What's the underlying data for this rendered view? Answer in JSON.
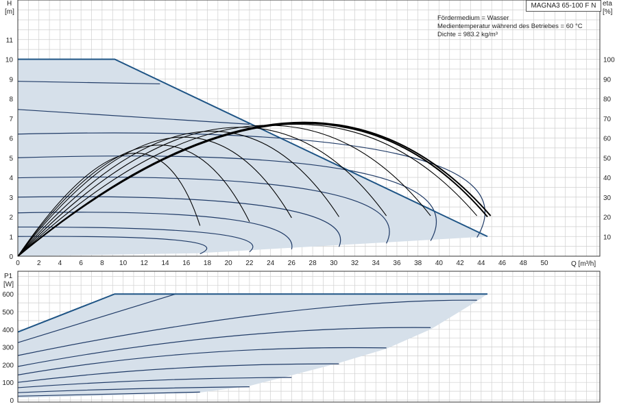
{
  "header": {
    "pump_model": "MAGNA3 65-100 F N",
    "notes": [
      "Fördermedium = Wasser",
      "Medientemperatur während des Betriebes = 60 °C",
      "Dichte = 983.2 kg/m³"
    ]
  },
  "chart_data": [
    {
      "type": "line",
      "panel": "head",
      "ylabel_lines": [
        "H",
        "[m]"
      ],
      "y2label_lines": [
        "eta",
        "[%]"
      ],
      "xlabel": "Q [m³/h]",
      "xlim": [
        0,
        55
      ],
      "ylim": [
        0,
        12
      ],
      "y2lim": [
        0,
        120
      ],
      "xticks": [
        0,
        2,
        4,
        6,
        8,
        10,
        12,
        14,
        16,
        18,
        20,
        22,
        24,
        26,
        28,
        30,
        32,
        34,
        36,
        38,
        40,
        42,
        44,
        46,
        48,
        50
      ],
      "yticks": [
        0,
        1,
        2,
        3,
        4,
        5,
        6,
        7,
        8,
        9,
        10,
        11
      ],
      "y2ticks": [
        10,
        20,
        30,
        40,
        50,
        60,
        70,
        80,
        90,
        100
      ],
      "grid": true,
      "operating_envelope": {
        "shaded": true,
        "upper_boundary": [
          [
            0,
            10
          ],
          [
            9.2,
            10
          ],
          [
            44.6,
            1.0
          ]
        ],
        "lower_boundary": [
          [
            0,
            0
          ],
          [
            17,
            0.15
          ],
          [
            44.6,
            1.0
          ]
        ]
      },
      "series": [
        {
          "curve": "head",
          "points": [
            [
              0,
              1.0
            ],
            [
              15,
              0.82
            ],
            [
              17.3,
              0.12
            ]
          ]
        },
        {
          "curve": "head",
          "points": [
            [
              0,
              1.48
            ],
            [
              18,
              1.18
            ],
            [
              22,
              0.22
            ]
          ]
        },
        {
          "curve": "head",
          "points": [
            [
              0,
              2.2
            ],
            [
              20,
              1.88
            ],
            [
              26,
              0.35
            ]
          ]
        },
        {
          "curve": "head",
          "points": [
            [
              0,
              3.0
            ],
            [
              24,
              2.5
            ],
            [
              30.5,
              0.48
            ]
          ]
        },
        {
          "curve": "head",
          "points": [
            [
              0,
              3.98
            ],
            [
              28,
              3.35
            ],
            [
              35,
              0.65
            ]
          ]
        },
        {
          "curve": "head",
          "points": [
            [
              0,
              5.0
            ],
            [
              32,
              4.3
            ],
            [
              39.2,
              0.78
            ]
          ]
        },
        {
          "curve": "head",
          "points": [
            [
              0,
              6.2
            ],
            [
              36,
              5.2
            ],
            [
              43.6,
              0.95
            ]
          ]
        },
        {
          "curve": "head",
          "points": [
            [
              0,
              7.45
            ],
            [
              22,
              6.7
            ]
          ]
        },
        {
          "curve": "head",
          "points": [
            [
              0,
              8.88
            ],
            [
              13.5,
              8.75
            ]
          ]
        },
        {
          "curve": "efficiency",
          "points": [
            [
              0,
              0
            ],
            [
              10.5,
              52
            ],
            [
              17.3,
              15.5
            ]
          ]
        },
        {
          "curve": "efficiency",
          "points": [
            [
              0,
              0
            ],
            [
              12.5,
              56
            ],
            [
              22,
              17.5
            ]
          ]
        },
        {
          "curve": "efficiency",
          "points": [
            [
              0,
              0
            ],
            [
              14.5,
              60
            ],
            [
              26,
              19.5
            ]
          ]
        },
        {
          "curve": "efficiency",
          "points": [
            [
              0,
              0
            ],
            [
              17,
              63
            ],
            [
              30.5,
              20
            ]
          ]
        },
        {
          "curve": "efficiency",
          "points": [
            [
              0,
              0
            ],
            [
              19.5,
              65
            ],
            [
              35,
              20.5
            ]
          ]
        },
        {
          "curve": "efficiency",
          "points": [
            [
              0,
              0
            ],
            [
              22,
              66
            ],
            [
              39.2,
              20.5
            ]
          ]
        },
        {
          "curve": "efficiency",
          "points": [
            [
              0,
              0
            ],
            [
              24.5,
              66.5
            ],
            [
              43.6,
              20.5
            ]
          ]
        },
        {
          "curve": "efficiency",
          "points": [
            [
              0,
              0
            ],
            [
              25.2,
              67
            ],
            [
              44.6,
              20
            ]
          ]
        },
        {
          "curve": "efficiency",
          "points": [
            [
              0,
              0
            ],
            [
              25.2,
              67.5
            ],
            [
              44.9,
              20.5
            ]
          ]
        }
      ]
    },
    {
      "type": "line",
      "panel": "power",
      "ylabel_lines": [
        "P1",
        "[W]"
      ],
      "xlim": [
        0,
        55
      ],
      "ylim": [
        0,
        650
      ],
      "yticks": [
        0,
        100,
        200,
        300,
        400,
        500,
        600
      ],
      "grid": true,
      "operating_envelope": {
        "shaded": true,
        "upper_boundary": [
          [
            0,
            385
          ],
          [
            9.2,
            600
          ],
          [
            44.6,
            600
          ]
        ],
        "lower_boundary": [
          [
            0,
            12
          ],
          [
            17,
            40
          ],
          [
            22,
            80
          ],
          [
            26,
            140
          ],
          [
            30.5,
            210
          ],
          [
            35,
            290
          ],
          [
            39.2,
            400
          ],
          [
            43.6,
            560
          ],
          [
            44.6,
            600
          ]
        ]
      },
      "series": [
        {
          "curve": "power",
          "points": [
            [
              0,
              22
            ],
            [
              9,
              35
            ],
            [
              17.3,
              45
            ]
          ]
        },
        {
          "curve": "power",
          "points": [
            [
              0,
              42
            ],
            [
              10,
              62
            ],
            [
              22,
              75
            ]
          ]
        },
        {
          "curve": "power",
          "points": [
            [
              0,
              70
            ],
            [
              13,
              112
            ],
            [
              26,
              128
            ]
          ]
        },
        {
          "curve": "power",
          "points": [
            [
              0,
              100
            ],
            [
              15,
              180
            ],
            [
              30.5,
              205
            ]
          ]
        },
        {
          "curve": "power",
          "points": [
            [
              0,
              142
            ],
            [
              17,
              265
            ],
            [
              35,
              295
            ]
          ]
        },
        {
          "curve": "power",
          "points": [
            [
              0,
              190
            ],
            [
              20,
              360
            ],
            [
              39.2,
              410
            ]
          ]
        },
        {
          "curve": "power",
          "points": [
            [
              0,
              252
            ],
            [
              24,
              490
            ],
            [
              43.6,
              565
            ]
          ]
        },
        {
          "curve": "power",
          "points": [
            [
              0,
              325
            ],
            [
              15,
              600
            ]
          ]
        },
        {
          "curve": "power",
          "points": [
            [
              0,
              385
            ],
            [
              9.2,
              600
            ]
          ]
        }
      ]
    }
  ],
  "colors": {
    "grid": "#cfcfcf",
    "area_fill": "#d6e0ea",
    "head_curve": "#1f3a66",
    "envelope": "#1e5485",
    "efficiency": "#000000",
    "power_curve": "#1f3a66",
    "axis": "#222222"
  }
}
